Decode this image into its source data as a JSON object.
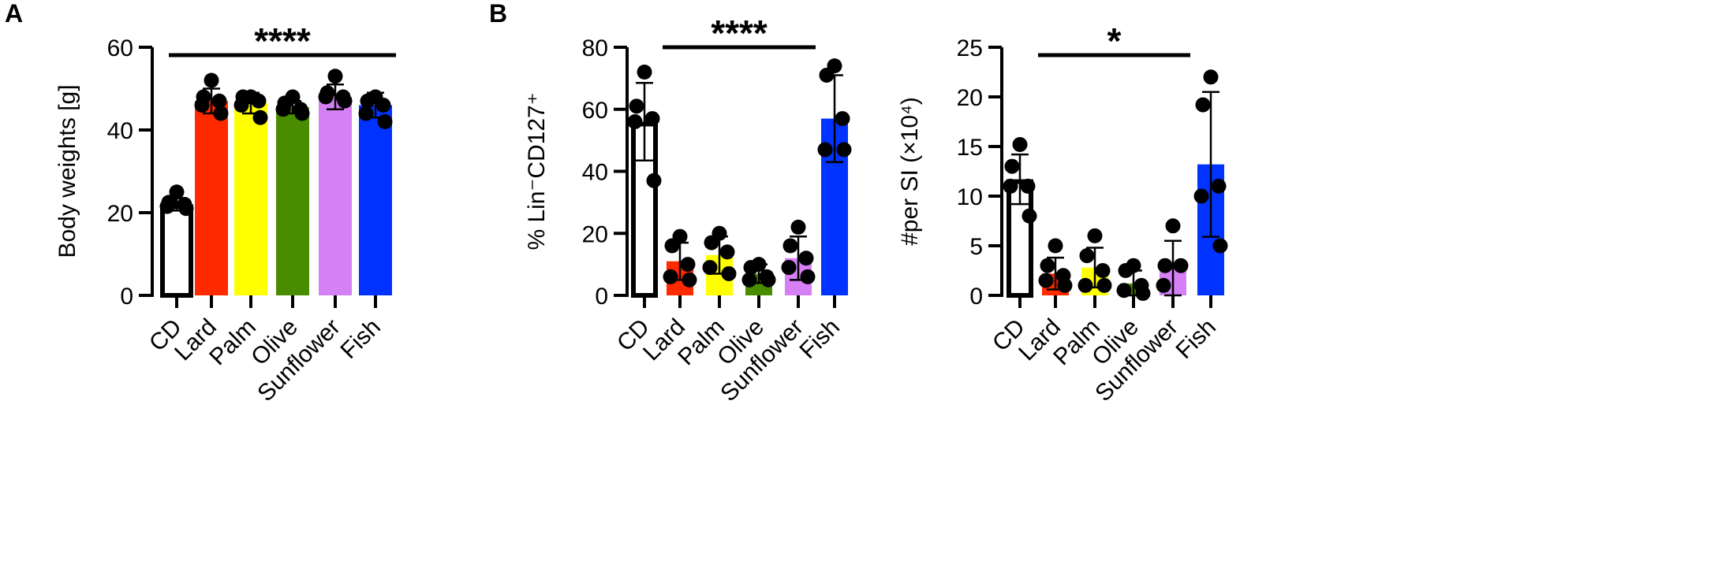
{
  "panel_letters": [
    "A",
    "B"
  ],
  "chart_data": [
    {
      "type": "bar",
      "panel": "A",
      "ylabel": "Body weights [g]",
      "ylim": [
        0,
        60
      ],
      "yticks": [
        "0",
        "20",
        "40",
        "60"
      ],
      "categories": [
        "CD",
        "Lard",
        "Palm",
        "Olive",
        "Sunflower",
        "Fish"
      ],
      "colors": [
        "#ffffff",
        "#ff2a00",
        "#ffff00",
        "#4a8c00",
        "#d580f5",
        "#0033ff"
      ],
      "means": [
        22,
        47,
        46.5,
        45.5,
        48,
        46
      ],
      "sd": [
        1.5,
        3,
        2.5,
        1.5,
        3,
        3
      ],
      "points": [
        [
          25,
          22.5,
          22,
          21.5,
          21
        ],
        [
          52,
          48,
          47,
          46,
          44
        ],
        [
          48,
          48,
          47,
          46,
          43
        ],
        [
          48,
          46.5,
          45,
          45,
          44
        ],
        [
          53,
          49,
          48,
          48,
          47
        ],
        [
          48,
          47,
          46,
          44,
          42
        ]
      ],
      "significance": {
        "label": "****",
        "from": 0,
        "to": 5
      }
    },
    {
      "type": "bar",
      "panel": "B",
      "ylabel": "% Lin⁻CD127⁺",
      "ylim": [
        0,
        80
      ],
      "yticks": [
        "0",
        "20",
        "40",
        "60",
        "80"
      ],
      "categories": [
        "CD",
        "Lard",
        "Palm",
        "Olive",
        "Sunflower",
        "Fish"
      ],
      "colors": [
        "#ffffff",
        "#ff2a00",
        "#ffff00",
        "#4a8c00",
        "#d580f5",
        "#0033ff"
      ],
      "means": [
        56,
        11,
        13,
        7,
        12,
        57
      ],
      "sd": [
        12.5,
        6,
        6,
        3,
        7,
        14
      ],
      "points": [
        [
          72,
          61,
          57,
          56,
          37
        ],
        [
          19,
          16,
          10,
          6,
          5
        ],
        [
          20,
          17,
          14,
          9,
          7
        ],
        [
          10,
          9,
          6,
          5,
          5
        ],
        [
          22,
          16,
          12,
          9,
          6
        ],
        [
          74,
          71,
          57,
          47,
          47
        ]
      ],
      "significance": {
        "label": "****",
        "from": 1,
        "to": 4
      }
    },
    {
      "type": "bar",
      "panel": "B",
      "ylabel": "#per SI (×10⁴)",
      "ylim": [
        0,
        25
      ],
      "yticks": [
        "0",
        "5",
        "10",
        "15",
        "20",
        "25"
      ],
      "categories": [
        "CD",
        "Lard",
        "Palm",
        "Olive",
        "Sunflower",
        "Fish"
      ],
      "colors": [
        "#ffffff",
        "#ff2a00",
        "#ffff00",
        "#4a8c00",
        "#d580f5",
        "#0033ff"
      ],
      "means": [
        11.7,
        2.2,
        2.8,
        1.2,
        2.7,
        13.2
      ],
      "sd": [
        2.5,
        1.6,
        2.0,
        1.3,
        2.8,
        7.3
      ],
      "points": [
        [
          15.2,
          13,
          11,
          11,
          8
        ],
        [
          5,
          3,
          2,
          1.5,
          1
        ],
        [
          6,
          4,
          2.5,
          1,
          1
        ],
        [
          3,
          2.5,
          1,
          0.5,
          0.2
        ],
        [
          7,
          3,
          3,
          1
        ],
        [
          22,
          19.2,
          11,
          10,
          5
        ]
      ],
      "significance": {
        "label": "*",
        "from": 1,
        "to": 4
      }
    }
  ]
}
